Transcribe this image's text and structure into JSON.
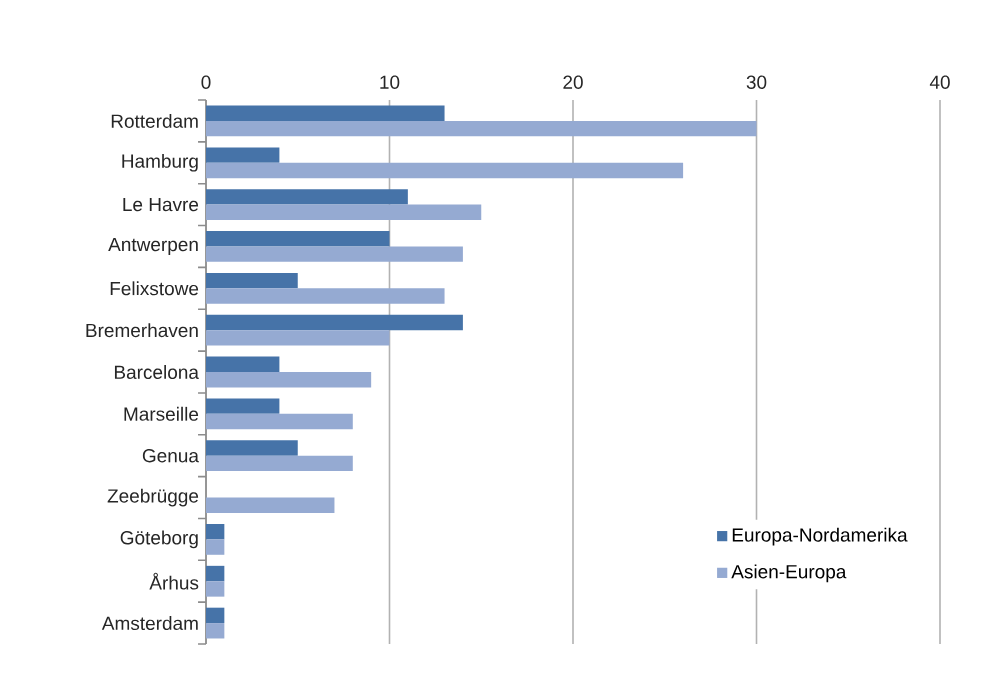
{
  "chart_data": {
    "type": "bar",
    "orientation": "horizontal",
    "categories": [
      "Rotterdam",
      "Hamburg",
      "Le Havre",
      "Antwerpen",
      "Felixstowe",
      "Bremerhaven",
      "Barcelona",
      "Marseille",
      "Genua",
      "Zeebrügge",
      "Göteborg",
      "Århus",
      "Amsterdam"
    ],
    "series": [
      {
        "name": "Europa-Nordamerika",
        "color": "#4673a8",
        "values": [
          13,
          4,
          11,
          10,
          5,
          14,
          4,
          4,
          5,
          0,
          1,
          1,
          1
        ]
      },
      {
        "name": "Asien-Europa",
        "color": "#95aad2",
        "values": [
          30,
          26,
          15,
          14,
          13,
          10,
          9,
          8,
          8,
          7,
          1,
          1,
          1
        ]
      }
    ],
    "xlim": [
      0,
      40
    ],
    "xticks": [
      0,
      10,
      20,
      30,
      40
    ],
    "grid": "x",
    "legend": "bottom right"
  }
}
